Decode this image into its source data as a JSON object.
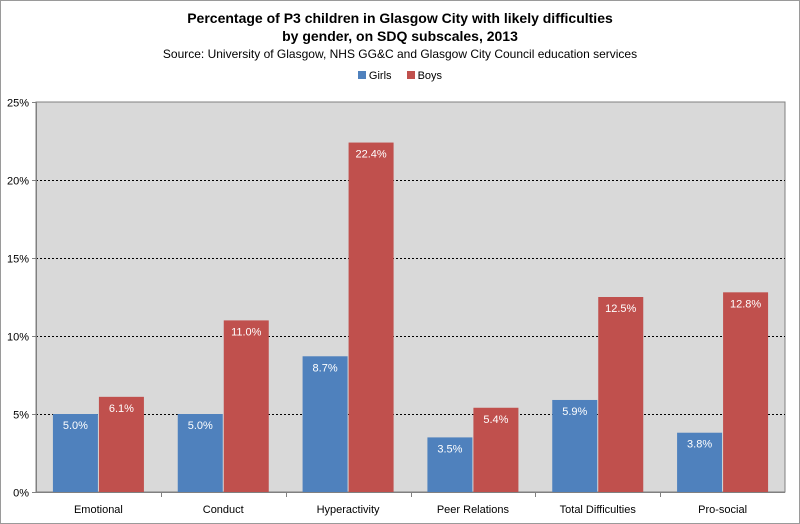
{
  "chart_data": {
    "type": "bar",
    "title_line1": "Percentage of P3 children in Glasgow City with likely difficulties",
    "title_line2": "by gender, on SDQ subscales, 2013",
    "subtitle": "Source: University of Glasgow, NHS GG&C and Glasgow City Council education services",
    "categories": [
      "Emotional",
      "Conduct",
      "Hyperactivity",
      "Peer Relations",
      "Total Difficulties",
      "Pro-social"
    ],
    "series": [
      {
        "name": "Girls",
        "color": "#4f81bd",
        "values": [
          5.0,
          5.0,
          8.7,
          3.5,
          5.9,
          3.8
        ],
        "labels": [
          "5.0%",
          "5.0%",
          "8.7%",
          "3.5%",
          "5.9%",
          "3.8%"
        ]
      },
      {
        "name": "Boys",
        "color": "#c0504d",
        "values": [
          6.1,
          11.0,
          22.4,
          5.4,
          12.5,
          12.8
        ],
        "labels": [
          "6.1%",
          "11.0%",
          "22.4%",
          "5.4%",
          "12.5%",
          "12.8%"
        ]
      }
    ],
    "yticks": [
      "0%",
      "5%",
      "10%",
      "15%",
      "20%",
      "25%"
    ],
    "ylim": [
      0,
      25
    ],
    "grid": true,
    "legend_position": "top-center",
    "plot_background": "#d9d9d9"
  }
}
